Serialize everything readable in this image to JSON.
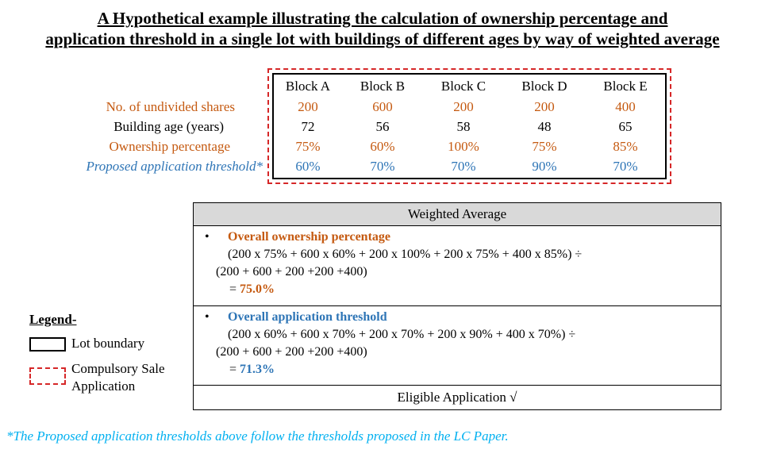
{
  "title": {
    "line1": "A Hypothetical example illustrating the calculation of ownership percentage and",
    "line2": "application threshold in a single lot with buildings of different ages by way of weighted average"
  },
  "table": {
    "blocks": [
      "Block A",
      "Block B",
      "Block C",
      "Block D",
      "Block E"
    ],
    "rows": [
      {
        "label": "No. of undivided shares",
        "values": [
          "200",
          "600",
          "200",
          "200",
          "400"
        ]
      },
      {
        "label": "Building age (years)",
        "values": [
          "72",
          "56",
          "58",
          "48",
          "65"
        ]
      },
      {
        "label": "Ownership percentage",
        "values": [
          "75%",
          "60%",
          "100%",
          "75%",
          "85%"
        ]
      },
      {
        "label": "Proposed application threshold*",
        "values": [
          "60%",
          "70%",
          "70%",
          "90%",
          "70%"
        ]
      }
    ]
  },
  "weighted_average": {
    "header": "Weighted Average",
    "ownership": {
      "bullet": "•",
      "title": "Overall ownership percentage",
      "line1": "(200 x 75% + 600 x 60% + 200 x 100% + 200 x 75% + 400 x 85%) ÷",
      "line2": "(200 + 600 + 200 +200 +400)",
      "result_prefix": "= ",
      "result": "75.0%"
    },
    "threshold": {
      "bullet": "•",
      "title": "Overall application threshold",
      "line1": "(200 x 60% + 600 x 70% + 200 x 70% + 200 x 90% + 400 x 70%) ÷",
      "line2": "(200 + 600 + 200 +200 +400)",
      "result_prefix": "= ",
      "result": "71.3%"
    },
    "eligible": "Eligible Application √"
  },
  "legend": {
    "title": "Legend-",
    "lot_boundary": "Lot boundary",
    "compulsory_line1": "Compulsory Sale",
    "compulsory_line2": "Application"
  },
  "footnote": "*The Proposed application thresholds above follow the thresholds proposed in the LC Paper.",
  "colors": {
    "orange": "#c55a11",
    "blue": "#2e75b6",
    "dashed_red": "#d62728",
    "footnote_cyan": "#00b0f0",
    "header_gray": "#d9d9d9"
  }
}
